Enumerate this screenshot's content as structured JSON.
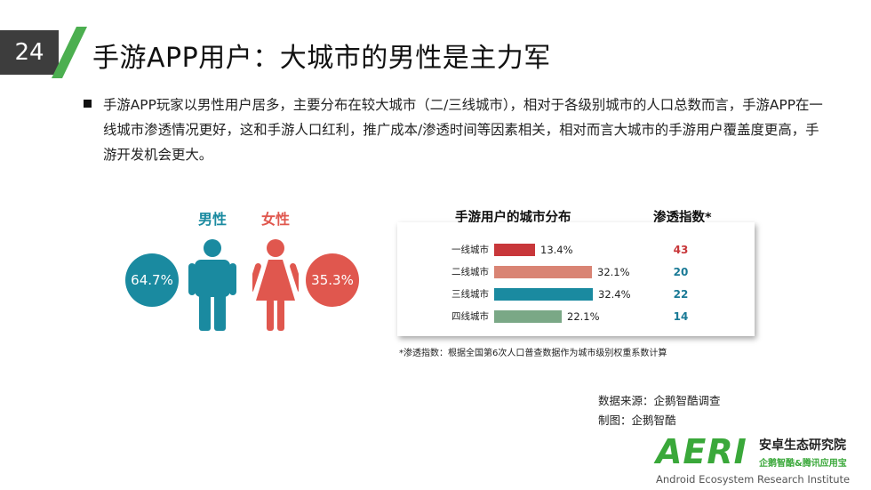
{
  "page_number": "24",
  "title": "手游APP用户：大城市的男性是主力军",
  "bullet_text": "手游APP玩家以男性用户居多，主要分布在较大城市（二/三线城市），相对于各级别城市的人口总数而言，手游APP在一线城市渗透情况更好，这和手游人口红利，推广成本/渗透时间等因素相关，相对而言大城市的手游用户覆盖度更高，手游开发机会更大。",
  "gender": {
    "male_label": "男性",
    "female_label": "女性",
    "male_pct": "64.7%",
    "female_pct": "35.3%",
    "male_color": "#1a8aa0",
    "female_color": "#e0574e"
  },
  "chart_data": {
    "type": "bar",
    "orientation": "horizontal",
    "title": "手游用户的城市分布",
    "categories": [
      "一线城市",
      "二线城市",
      "三线城市",
      "四线城市"
    ],
    "values": [
      13.4,
      32.1,
      32.4,
      22.1
    ],
    "value_labels": [
      "13.4%",
      "32.1%",
      "32.4%",
      "22.1%"
    ],
    "colors": [
      "#c8373a",
      "#d98474",
      "#1a8aa0",
      "#7aa886"
    ],
    "xlim": [
      0,
      32.4
    ],
    "penetration": {
      "title": "渗透指数*",
      "values": [
        "43",
        "20",
        "22",
        "14"
      ],
      "colors": [
        "#c8373a",
        "#1a7a96",
        "#1a7a96",
        "#1a7a96"
      ]
    }
  },
  "footnote": "*渗透指数：根据全国第6次人口普查数据作为城市级别权重系数计算",
  "source_line": "数据来源：企鹅智酷调查",
  "made_by_line": "制图：企鹅智酷",
  "logo": {
    "letters": "AERI",
    "cn_name": "安卓生态研究院",
    "cn_sub": "企鹅智酷&腾讯应用宝",
    "en_name": "Android Ecosystem Research Institute",
    "color": "#3aa83a"
  }
}
